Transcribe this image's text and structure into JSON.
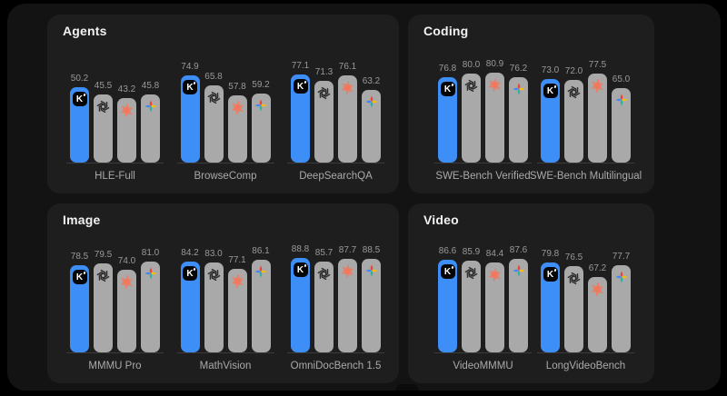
{
  "theme": {
    "page_background": "#000000",
    "window_background": "#131313",
    "card_background": "#1e1e1e",
    "title_color": "#f2f2f2",
    "value_label_color": "#999999",
    "benchmark_label_color": "#a9a9a9",
    "axis_color": "#3b3b3b",
    "highlight_bar_color": "#3e8ef7",
    "default_bar_color": "#a9a9a9",
    "kimi_badge_background": "#050505",
    "openai_icon_color": "#2d2d2d",
    "claude_icon_color": "#f4775c",
    "gemini_icon_colors": [
      "#EA4335",
      "#FBBC04",
      "#2EAFA0",
      "#4285F4"
    ]
  },
  "series": [
    {
      "icon": "kimi-k-icon",
      "highlight": true
    },
    {
      "icon": "openai-icon",
      "highlight": false
    },
    {
      "icon": "claude-starburst-icon",
      "highlight": false
    },
    {
      "icon": "gemini-sparkle-icon",
      "highlight": false
    }
  ],
  "chart_data": [
    {
      "type": "bar",
      "title": "Agents",
      "value_labels": true,
      "grid": false,
      "ylim": [
        0,
        100
      ],
      "groups": [
        {
          "label": "HLE-Full",
          "values": [
            50.2,
            45.5,
            43.2,
            45.8
          ]
        },
        {
          "label": "BrowseComp",
          "values": [
            74.9,
            65.8,
            57.8,
            59.2
          ]
        },
        {
          "label": "DeepSearchQA",
          "values": [
            77.1,
            71.3,
            76.1,
            63.2
          ]
        }
      ]
    },
    {
      "type": "bar",
      "title": "Coding",
      "value_labels": true,
      "grid": false,
      "ylim": [
        0,
        100
      ],
      "groups": [
        {
          "label": "SWE-Bench Verified",
          "values": [
            76.8,
            80.0,
            80.9,
            76.2
          ]
        },
        {
          "label": "SWE-Bench Multilingual",
          "values": [
            73.0,
            72.0,
            77.5,
            65.0
          ]
        }
      ]
    },
    {
      "type": "bar",
      "title": "Image",
      "value_labels": true,
      "grid": false,
      "ylim": [
        0,
        100
      ],
      "groups": [
        {
          "label": "MMMU Pro",
          "values": [
            78.5,
            79.5,
            74.0,
            81.0
          ]
        },
        {
          "label": "MathVision",
          "values": [
            84.2,
            83.0,
            77.1,
            86.1
          ]
        },
        {
          "label": "OmniDocBench 1.5",
          "values": [
            88.8,
            85.7,
            87.7,
            88.5
          ]
        }
      ]
    },
    {
      "type": "bar",
      "title": "Video",
      "value_labels": true,
      "grid": false,
      "ylim": [
        0,
        100
      ],
      "groups": [
        {
          "label": "VideoMMMU",
          "values": [
            86.6,
            85.9,
            84.4,
            87.6
          ]
        },
        {
          "label": "LongVideoBench",
          "values": [
            79.8,
            76.5,
            67.2,
            77.7
          ]
        }
      ]
    }
  ]
}
